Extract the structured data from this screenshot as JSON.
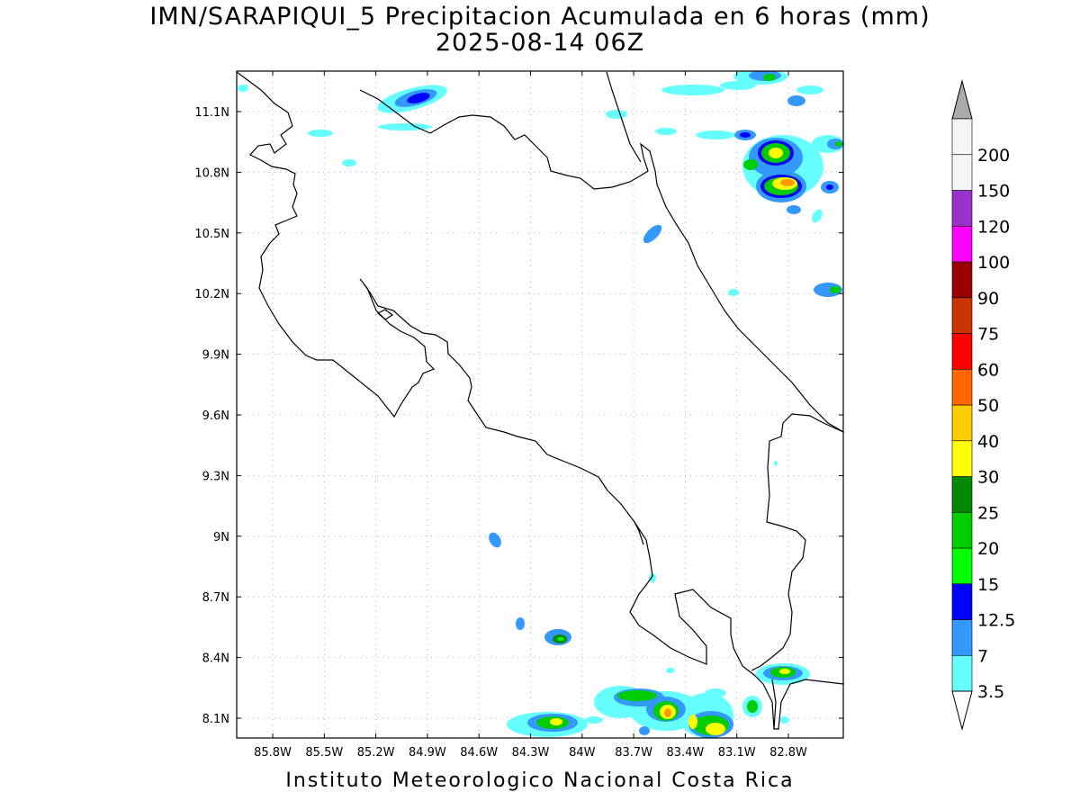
{
  "title": {
    "line1": "IMN/SARAPIQUI_5 Precipitacion Acumulada en 6 horas (mm)",
    "line2": "2025-08-14 06Z"
  },
  "footer": "Instituto Meteorologico Nacional Costa Rica",
  "map": {
    "lat_ticks": [
      "11.1N",
      "10.8N",
      "10.5N",
      "10.2N",
      "9.9N",
      "9.6N",
      "9.3N",
      "9N",
      "8.7N",
      "8.4N",
      "8.1N"
    ],
    "lon_ticks": [
      "85.8W",
      "85.5W",
      "85.2W",
      "84.9W",
      "84.6W",
      "84.3W",
      "84W",
      "83.7W",
      "83.4W",
      "83.1W",
      "82.8W"
    ],
    "grid": true
  },
  "colorbar": {
    "labels": [
      "3.5",
      "7",
      "12.5",
      "15",
      "20",
      "25",
      "30",
      "40",
      "50",
      "60",
      "75",
      "90",
      "100",
      "120",
      "150",
      "200"
    ],
    "colors": [
      "#66ffff",
      "#3399ff",
      "#0000ff",
      "#00ff00",
      "#00cc00",
      "#008800",
      "#ffff00",
      "#ffcc00",
      "#ff6600",
      "#ff0000",
      "#cc3300",
      "#990000",
      "#ff00ff",
      "#9933cc",
      "#f5f5f5",
      "#aaaaaa"
    ],
    "under_color": "#ffffff"
  }
}
